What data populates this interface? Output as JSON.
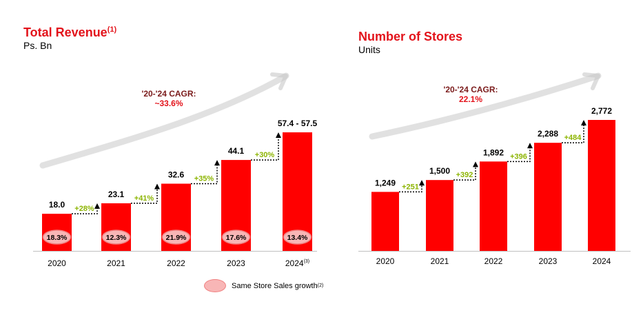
{
  "chart_data": [
    {
      "type": "bar",
      "title": "Total Revenue",
      "title_note": "(1)",
      "subtitle": "Ps. Bn",
      "categories": [
        "2020",
        "2021",
        "2022",
        "2023",
        "2024"
      ],
      "category_notes": [
        "",
        "",
        "",
        "",
        "(3)"
      ],
      "values": [
        18.0,
        23.1,
        32.6,
        44.1,
        57.5
      ],
      "value_labels": [
        "18.0",
        "23.1",
        "32.6",
        "44.1",
        "57.4 - 57.5"
      ],
      "growth_labels": [
        "+28%",
        "+41%",
        "+35%",
        "+30%"
      ],
      "same_store_sales_growth": [
        "18.3%",
        "12.3%",
        "21.9%",
        "17.6%",
        "13.4%"
      ],
      "cagr_label": "'20-'24 CAGR:",
      "cagr_value": "~33.6%",
      "ylim": [
        0,
        60
      ]
    },
    {
      "type": "bar",
      "title": "Number of Stores",
      "subtitle": "Units",
      "categories": [
        "2020",
        "2021",
        "2022",
        "2023",
        "2024"
      ],
      "values": [
        1249,
        1500,
        1892,
        2288,
        2772
      ],
      "value_labels": [
        "1,249",
        "1,500",
        "1,892",
        "2,288",
        "2,772"
      ],
      "growth_labels": [
        "+251",
        "+392",
        "+396",
        "+484"
      ],
      "cagr_label": "'20-'24 CAGR:",
      "cagr_value": "22.1%",
      "ylim": [
        0,
        2900
      ]
    }
  ],
  "legend": {
    "label": "Same Store Sales growth",
    "note": "(2)"
  },
  "colors": {
    "bar": "#ff0000",
    "title": "#e3131b",
    "cagr_label": "#7a1a1a",
    "cagr_value": "#e3131b",
    "growth": "#8cb400",
    "pill_fill": "#f8b6b6",
    "pill_stroke": "#f07f7f",
    "arrow": "#c8c8c8"
  }
}
